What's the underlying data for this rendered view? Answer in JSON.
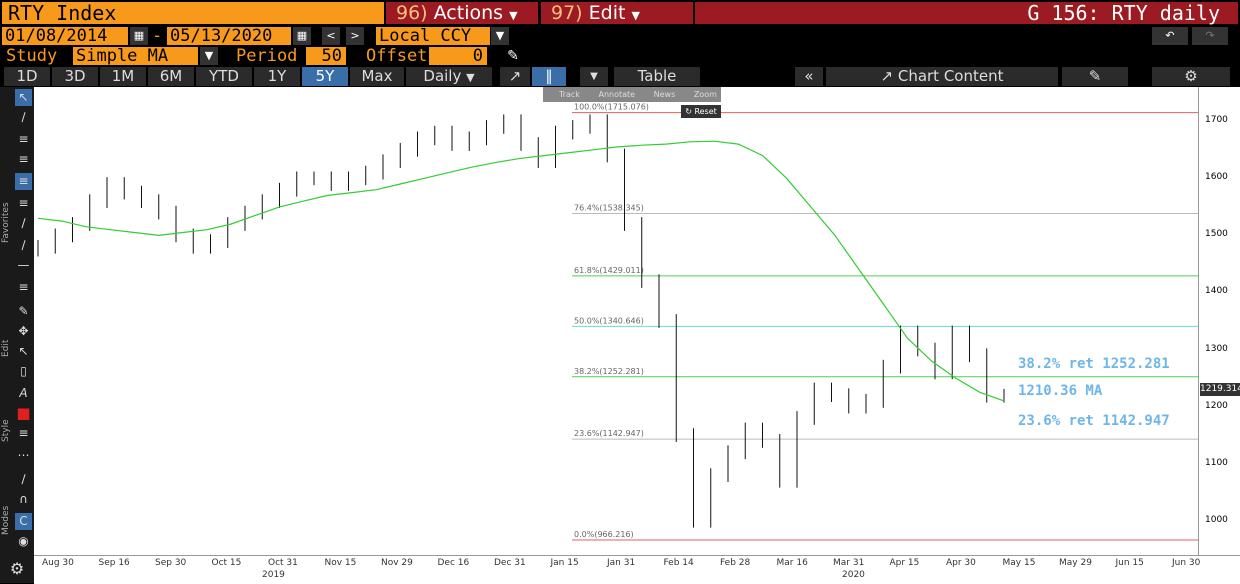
{
  "header": {
    "security": "RTY Index",
    "actions_num": "96)",
    "actions_label": "Actions",
    "edit_num": "97)",
    "edit_label": "Edit",
    "window_title": "G 156: RTY daily"
  },
  "range": {
    "start_date": "01/08/2014",
    "end_date": "05/13/2020",
    "currency": "Local CCY"
  },
  "study": {
    "study_label": "Study",
    "study_value": "Simple MA",
    "period_label": "Period",
    "period_value": "50",
    "offset_label": "Offset",
    "offset_value": "0"
  },
  "toolbar": {
    "periods": [
      "1D",
      "3D",
      "1M",
      "6M",
      "YTD",
      "1Y",
      "5Y",
      "Max"
    ],
    "active_period": "5Y",
    "frequency": "Daily",
    "table_label": "Table",
    "chart_content_label": "Chart Content"
  },
  "mini_toolbar": [
    "Track",
    "Annotate",
    "News",
    "Zoom"
  ],
  "reset_label": "Reset",
  "side_labels": {
    "favorites": "Favorites",
    "edit": "Edit",
    "style": "Style",
    "modes": "Modes"
  },
  "annotations": {
    "fib382": "38.2% ret 1252.281",
    "ma": "1210.36 MA",
    "fib236": "23.6% ret 1142.947"
  },
  "last_price": "1219.314",
  "colors": {
    "accent": "#f79a1c",
    "header_red": "#9c1a22",
    "ma_line": "#33cc33",
    "fib_blue": "#6fb6e8"
  },
  "chart_data": {
    "type": "line",
    "title": "",
    "yticks": [
      1000,
      1100,
      1200,
      1300,
      1400,
      1500,
      1600,
      1700
    ],
    "ylim": [
      940,
      1760
    ],
    "xticks": [
      "Aug 30",
      "Sep 16",
      "Sep 30",
      "Oct 15",
      "Oct 31",
      "Nov 15",
      "Nov 29",
      "Dec 16",
      "Dec 31",
      "Jan 15",
      "Jan 31",
      "Feb 14",
      "Feb 28",
      "Mar 16",
      "Mar 31",
      "Apr 15",
      "Apr 30",
      "May 15",
      "May 29",
      "Jun 15",
      "Jun 30"
    ],
    "year_labels": [
      "2019",
      "2020"
    ],
    "fib_levels": [
      {
        "label": "100.0%(1715.076)",
        "value": 1715.076,
        "color": "#e06060"
      },
      {
        "label": "76.4%(1538.345)",
        "value": 1538.345,
        "color": "#bbbbbb"
      },
      {
        "label": "61.8%(1429.011)",
        "value": 1429.011,
        "color": "#55cc55"
      },
      {
        "label": "50.0%(1340.646)",
        "value": 1340.646,
        "color": "#66dddd"
      },
      {
        "label": "38.2%(1252.281)",
        "value": 1252.281,
        "color": "#55cc55"
      },
      {
        "label": "23.6%(1142.947)",
        "value": 1142.947,
        "color": "#bbbbbb"
      },
      {
        "label": "0.0%(966.216)",
        "value": 966.216,
        "color": "#e06060"
      }
    ],
    "series": [
      {
        "name": "RTY",
        "values": [
          1475,
          1480,
          1500,
          1520,
          1560,
          1590,
          1575,
          1560,
          1540,
          1500,
          1480,
          1490,
          1520,
          1540,
          1560,
          1580,
          1600,
          1600,
          1590,
          1600,
          1610,
          1630,
          1650,
          1670,
          1680,
          1660,
          1670,
          1690,
          1700,
          1660,
          1630,
          1680,
          1690,
          1700,
          1640,
          1520,
          1420,
          1350,
          1150,
          1000,
          1080,
          1120,
          1160,
          1140,
          1070,
          1180,
          1230,
          1220,
          1200,
          1210,
          1270,
          1330,
          1300,
          1260,
          1330,
          1290,
          1219
        ]
      },
      {
        "name": "MA",
        "values": [
          1530,
          1525,
          1515,
          1510,
          1505,
          1500,
          1505,
          1510,
          1520,
          1535,
          1550,
          1560,
          1570,
          1575,
          1580,
          1590,
          1600,
          1610,
          1620,
          1628,
          1635,
          1640,
          1645,
          1650,
          1655,
          1658,
          1660,
          1664,
          1665,
          1660,
          1640,
          1600,
          1550,
          1500,
          1440,
          1380,
          1320,
          1280,
          1250,
          1225,
          1210
        ]
      }
    ]
  }
}
